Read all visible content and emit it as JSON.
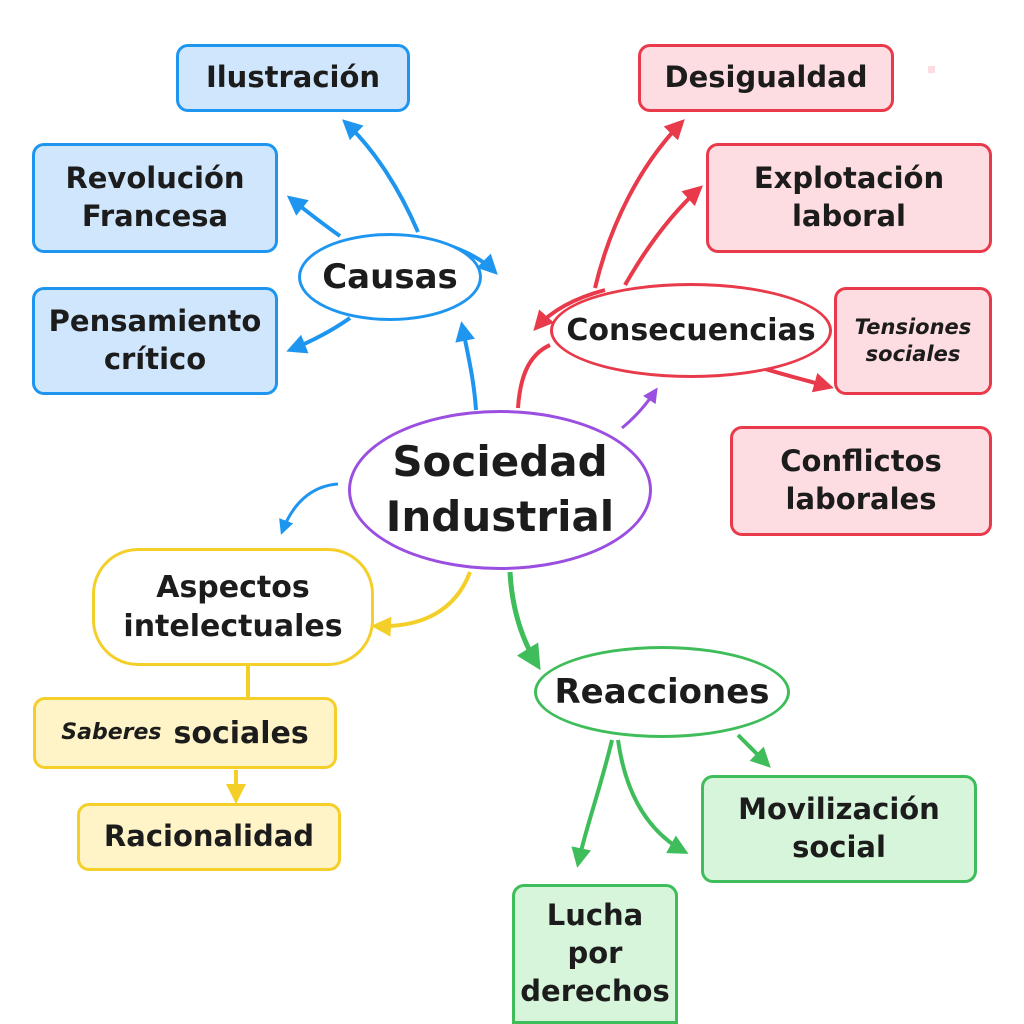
{
  "center": {
    "line1": "Sociedad",
    "line2": "Industrial"
  },
  "causes": {
    "hub": "Causas",
    "items": [
      {
        "line1": "Ilustración"
      },
      {
        "line1": "Revolución",
        "line2": "Francesa"
      },
      {
        "line1": "Pensamiento",
        "line2": "crítico"
      }
    ]
  },
  "consequences": {
    "hub": "Consecuencias",
    "items": [
      {
        "line1": "Desigualdad"
      },
      {
        "line1": "Explotación",
        "line2": "laboral"
      },
      {
        "line1": "Tensiones",
        "line2": "sociales"
      },
      {
        "line1": "Conflictos",
        "line2": "laborales"
      }
    ]
  },
  "intellectual": {
    "hub_line1": "Aspectos",
    "hub_line2": "intelectuales",
    "saberes_italic": "Saberes",
    "saberes_word": "sociales",
    "racionalidad": "Racionalidad"
  },
  "reactions": {
    "hub": "Reacciones",
    "items": [
      {
        "line1": "Movilización",
        "line2": "social"
      },
      {
        "line1": "Lucha",
        "line2": "por",
        "line3": "derechos"
      }
    ]
  },
  "colors": {
    "blue": "#1e96f0",
    "red": "#e83a4a",
    "yellow": "#f4cf2a",
    "green": "#3fbd5a",
    "purple": "#9b4fe0"
  }
}
